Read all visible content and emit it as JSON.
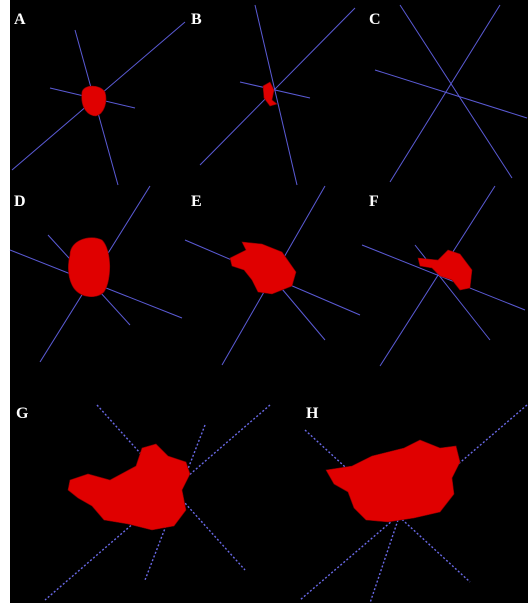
{
  "panels": [
    {
      "label": "A"
    },
    {
      "label": "B"
    },
    {
      "label": "C"
    },
    {
      "label": "D"
    },
    {
      "label": "E"
    },
    {
      "label": "F"
    },
    {
      "label": "G"
    },
    {
      "label": "H"
    }
  ]
}
